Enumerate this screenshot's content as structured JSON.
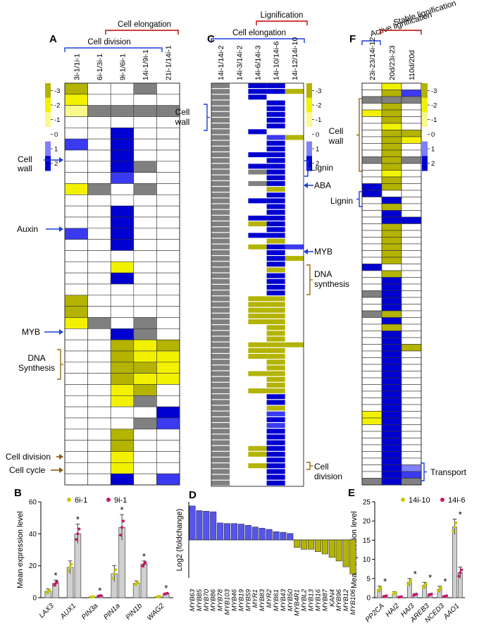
{
  "colors": {
    "yellow": "#f2f200",
    "lightyellow": "#fafa8c",
    "olive": "#b3b300",
    "blue": "#0000d0",
    "midblue": "#3a3af0",
    "lightblue": "#8080f8",
    "gray": "#808080",
    "white": "#ffffff",
    "bracket_red": "#c00000",
    "bracket_blue": "#1c3fd8",
    "bracket_brown": "#9a6a10",
    "arrow_blue": "#1c3fd8",
    "arrow_brown": "#8a5a10",
    "bar_blue": "#5555ee",
    "bar_olive": "#b3b300",
    "dot_yellow": "#c8c800",
    "dot_pink": "#c8186a"
  },
  "panelA": {
    "letter": "A",
    "top_brackets": [
      {
        "label": "Cell elongation",
        "color": "red"
      },
      {
        "label": "Cell division",
        "color": "blue"
      }
    ],
    "columns": [
      "3i-1/1i-1",
      "6i-1/3i-1",
      "9i-1/6i-1",
      "14i-1/9i-1",
      "21i-1/14i-1"
    ],
    "colorbar": [
      "-3",
      "-2",
      "-1",
      "0",
      "1",
      "2"
    ],
    "annotations": [
      {
        "label": "Cell\nwall",
        "kind": "arrow",
        "color": "blue"
      },
      {
        "label": "Auxin",
        "kind": "arrow",
        "color": "blue"
      },
      {
        "label": "MYB",
        "kind": "arrow",
        "color": "blue"
      },
      {
        "label": "DNA\nSynthesis",
        "kind": "bracket",
        "color": "brown"
      },
      {
        "label": "Cell division",
        "kind": "arrow",
        "color": "brown"
      },
      {
        "label": "Cell cycle",
        "kind": "arrow",
        "color": "brown"
      }
    ]
  },
  "panelC": {
    "letter": "C",
    "top_brackets": [
      {
        "label": "Lignification",
        "color": "red"
      },
      {
        "label": "Cell elongation",
        "color": "blue"
      }
    ],
    "columns": [
      "14i-1/14i-2",
      "14i-3/14i-2",
      "14i-6/14i-3",
      "14i-10/14i-6",
      "14i-12/14i-10"
    ],
    "colorbar": [
      "-3",
      "-2",
      "-1",
      "0",
      "1",
      "2"
    ],
    "annotations": [
      {
        "label": "Cell\nwall",
        "kind": "bracket",
        "color": "blue"
      },
      {
        "label": "Lignin",
        "kind": "bracket",
        "color": "blue"
      },
      {
        "label": "ABA",
        "kind": "arrow",
        "color": "blue"
      },
      {
        "label": "MYB",
        "kind": "arrow",
        "color": "blue"
      },
      {
        "label": "DNA\nsynthesis",
        "kind": "bracket",
        "color": "brown"
      },
      {
        "label": "Cell\ndivision",
        "kind": "bracket",
        "color": "brown"
      }
    ]
  },
  "panelF": {
    "letter": "F",
    "top_brackets": [
      {
        "label": "Active lignification",
        "color": "blue"
      },
      {
        "label": "Stable lignification",
        "color": "red"
      }
    ],
    "columns": [
      "23i-23/14i-12",
      "20d/23i-23",
      "110d/20d"
    ],
    "colorbar": [
      "-3",
      "-2",
      "-1",
      "0",
      "1",
      "2"
    ],
    "annotations": [
      {
        "label": "Cell\nwall",
        "kind": "bracket",
        "color": "brown"
      },
      {
        "label": "Lignin",
        "kind": "bracket",
        "color": "blue"
      },
      {
        "label": "Transport",
        "kind": "bracket",
        "color": "blue"
      }
    ]
  },
  "chart_data": [
    {
      "panel": "A",
      "type": "heatmap",
      "title": "",
      "columns": [
        "3i-1/1i-1",
        "6i-1/3i-1",
        "9i-1/6i-1",
        "14i-1/9i-1",
        "21i-1/14i-1"
      ],
      "scale": [
        -3,
        2
      ],
      "legend": "Y=yellow, L=light yellow, O=olive, B=blue, M=medium blue, P=pale blue, G=gray (missing), W=white (~0)",
      "rows": [
        "OWWGW",
        "YWWWW",
        "LGGGG",
        "WWWWW",
        "WWBWW",
        "MWBWW",
        "WWBWW",
        "WWBGW",
        "WWMWW",
        "YGWGW",
        "WWWWW",
        "WWBWW",
        "WWBWW",
        "MWBWW",
        "WWBWW",
        "WWWWW",
        "WWYWW",
        "WWBWW",
        "WWWWW",
        "OWWWW",
        "OWWWW",
        "YGWGW",
        "WWBGW",
        "WWOYO",
        "WWOYY",
        "WWOOY",
        "WWOYY",
        "WWYOW",
        "WWYGW",
        "WWWWB",
        "WWWGM",
        "WWOWW",
        "WWOWW",
        "WWYWW",
        "WWYWW",
        "WWBWM"
      ]
    },
    {
      "panel": "C",
      "type": "heatmap",
      "title": "",
      "columns": [
        "14i-1/14i-2",
        "14i-3/14i-2",
        "14i-6/14i-3",
        "14i-10/14i-6",
        "14i-12/14i-10"
      ],
      "scale": [
        -3,
        2
      ],
      "legend": "Y=yellow, L=light yellow, O=olive, B=blue, M=medium blue, P=pale blue, G=gray (missing), W=white (~0)",
      "rows": [
        "GWBBW",
        "GWBBO",
        "GWBWW",
        "GWWBW",
        "GWWBW",
        "GWWBW",
        "GWWBW",
        "GWWBW",
        "GWBWW",
        "GWWMO",
        "GWWBW",
        "GWWBW",
        "GWBBW",
        "GWWBW",
        "GWBBW",
        "GWGBW",
        "GWWBW",
        "GWGBW",
        "GWWOW",
        "GWWBW",
        "GWBBW",
        "GWWBW",
        "GWWBW",
        "GWBBW",
        "GWOBW",
        "GWWBW",
        "GWBBW",
        "GWWOW",
        "GWOBM",
        "GWWBW",
        "GWWBO",
        "GWWBW",
        "GWWOW",
        "GWWBW",
        "GWWBW",
        "GWWBW",
        "GWWBW",
        "GWOOW",
        "GWOOW",
        "GWOOW",
        "GWOOW",
        "GWOOW",
        "GWWOW",
        "GWWOW",
        "GWWOW",
        "GWOOO",
        "GWOOW",
        "GWOOW",
        "GWWOW",
        "GWWOW",
        "GWOOW",
        "GWWOW",
        "GWWOW",
        "GWOOW",
        "GWWBW",
        "GWWBW",
        "GWWOW",
        "GWWMW",
        "GWWBW",
        "GWWMW",
        "GWWBW",
        "GWWBW",
        "GWWBW",
        "GWOBW",
        "GWOBW",
        "GWWBW",
        "GWOBW",
        "GWWBW",
        "GWWBW",
        "GWWBW"
      ]
    },
    {
      "panel": "F",
      "type": "heatmap",
      "title": "",
      "columns": [
        "23i-23/14i-12",
        "20d/23i-23",
        "110d/20d"
      ],
      "scale": [
        -3,
        2
      ],
      "legend": "Y=yellow, L=light yellow, O=olive, B=blue, M=medium blue, P=pale blue, G=gray (missing), W=white (~0)",
      "rows": [
        "WYW",
        "WOM",
        "GGG",
        "WOW",
        "YOW",
        "WOW",
        "WYW",
        "WOO",
        "WOY",
        "WOW",
        "WOW",
        "GOG",
        "WOW",
        "WYW",
        "WOW",
        "BOW",
        "BWW",
        "WBW",
        "WOW",
        "WBW",
        "WBB",
        "WOW",
        "WOW",
        "WOW",
        "WOW",
        "WOW",
        "WOW",
        "BWW",
        "WOW",
        "WBW",
        "WBW",
        "GBW",
        "WBW",
        "WBW",
        "GOW",
        "WBW",
        "WOW",
        "WBW",
        "WBW",
        "WBO",
        "WBW",
        "WBW",
        "WBW",
        "WBW",
        "WBW",
        "WBW",
        "WBW",
        "WBW",
        "WBW",
        "YBW",
        "YBW",
        "WBW",
        "WBW",
        "WBW",
        "WBW",
        "WBW",
        "WBW",
        "WBP",
        "WBM",
        "GBG"
      ]
    },
    {
      "panel": "B",
      "type": "bar",
      "ylabel": "Mean expression level",
      "ylim": [
        0,
        60
      ],
      "yticks": [
        0,
        20,
        40,
        60
      ],
      "categories": [
        "LAX3",
        "AUX1",
        "PIN3a",
        "PIN1a",
        "PIN1b",
        "WAG2"
      ],
      "series": [
        {
          "name": "6i-1",
          "values": [
            4,
            19,
            0.5,
            15,
            9,
            0.7
          ],
          "errors": [
            1.5,
            4,
            0.3,
            5,
            1.5,
            0.3
          ]
        },
        {
          "name": "9i-1",
          "values": [
            9,
            40,
            1.2,
            44,
            21,
            2.5
          ],
          "errors": [
            2,
            6,
            0.3,
            8,
            2,
            0.5
          ]
        }
      ],
      "significance": [
        true,
        true,
        true,
        true,
        true,
        true
      ]
    },
    {
      "panel": "D",
      "type": "bar",
      "ylabel": "Log2 (foldchange)",
      "categories": [
        "MYB63",
        "MYB85",
        "MYB70",
        "MYB86",
        "MYB78",
        "MYB103",
        "MYB46",
        "MYB19",
        "MYB59",
        "MYR1",
        "MYB83",
        "MYR2",
        "MYB61",
        "MYB43",
        "MYB50",
        "MYB4R1",
        "MYBL2",
        "MYB13",
        "MYB16",
        "MYB87",
        "KAN4",
        "MYB96",
        "MYB12",
        "MYB106"
      ],
      "values": [
        5.8,
        5.0,
        4.9,
        4.8,
        2.9,
        2.8,
        2.8,
        2.7,
        2.5,
        2.2,
        2.0,
        1.8,
        1.4,
        1.3,
        1.1,
        -1.3,
        -1.6,
        -1.6,
        -2.0,
        -2.4,
        -3.0,
        -3.6,
        -4.6,
        -5.8
      ],
      "ylim": [
        -6.5,
        6.5
      ]
    },
    {
      "panel": "E",
      "type": "bar",
      "ylabel": "Mean expression level",
      "ylim": [
        0,
        25
      ],
      "yticks": [
        0,
        5,
        10,
        15,
        20,
        25
      ],
      "categories": [
        "PP2CA",
        "HAI2",
        "HAI3",
        "AREB3",
        "NCED3",
        "AAO1"
      ],
      "series": [
        {
          "name": "14i-10",
          "values": [
            2.2,
            1.2,
            4.0,
            3.2,
            2.2,
            18.5
          ],
          "errors": [
            0.8,
            0.4,
            1.0,
            0.8,
            0.8,
            2.0
          ]
        },
        {
          "name": "14i-6",
          "values": [
            0.4,
            0.2,
            0.8,
            0.8,
            0.4,
            6.5
          ],
          "errors": [
            0.2,
            0.1,
            0.3,
            0.3,
            0.2,
            1.5
          ]
        }
      ],
      "significance": [
        true,
        false,
        true,
        true,
        true,
        true
      ]
    }
  ],
  "panelB": {
    "letter": "B"
  },
  "panelD": {
    "letter": "D"
  },
  "panelE": {
    "letter": "E"
  }
}
